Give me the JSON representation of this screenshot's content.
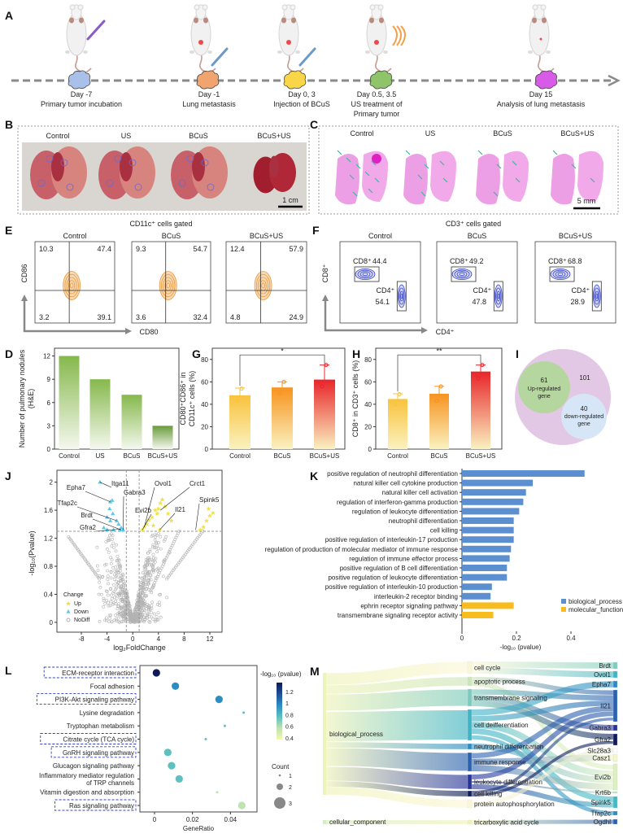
{
  "panel_labels": [
    "A",
    "B",
    "C",
    "D",
    "E",
    "F",
    "G",
    "H",
    "I",
    "J",
    "K",
    "L",
    "M"
  ],
  "panel_a": {
    "events": [
      {
        "day": "Day -7",
        "lines": [
          "Primary tumor incubation"
        ],
        "color": "#a9c1ea"
      },
      {
        "day": "Day -1",
        "lines": [
          "Lung metastasis"
        ],
        "color": "#f2a46f"
      },
      {
        "day": "Day 0, 3",
        "lines": [
          "Injection of BCuS"
        ],
        "color": "#f8d648"
      },
      {
        "day": "Day 0.5, 3.5",
        "lines": [
          "US treatment of",
          "Primary tumor"
        ],
        "color": "#8fc46a"
      },
      {
        "day": "Day 15",
        "lines": [
          "Analysis of lung metastasis"
        ],
        "color": "#d85ae8"
      }
    ]
  },
  "panel_b": {
    "groups": [
      "Control",
      "US",
      "BCuS",
      "BCuS+US"
    ],
    "scale_bar": "1 cm"
  },
  "panel_c": {
    "groups": [
      "Control",
      "US",
      "BCuS",
      "BCuS+US"
    ],
    "scale_bar": "5 mm"
  },
  "panel_e": {
    "title": "CD11c⁺ cells gated",
    "ylabel": "CD86",
    "xlabel": "CD80",
    "groups": [
      {
        "name": "Control",
        "q": [
          "10.3",
          "47.4",
          "3.2",
          "39.1"
        ]
      },
      {
        "name": "BCuS",
        "q": [
          "9.3",
          "54.7",
          "3.6",
          "32.4"
        ]
      },
      {
        "name": "BCuS+US",
        "q": [
          "12.4",
          "57.9",
          "4.8",
          "24.9"
        ]
      }
    ]
  },
  "panel_f": {
    "title": "CD3⁺ cells gated",
    "ylabel": "CD8⁺",
    "xlabel": "CD4⁺",
    "cd8_label": "CD8⁺",
    "cd4_label": "CD4⁺",
    "groups": [
      {
        "name": "Control",
        "cd8": "44.4",
        "cd4": "54.1"
      },
      {
        "name": "BCuS",
        "cd8": "49.2",
        "cd4": "47.8"
      },
      {
        "name": "BCuS+US",
        "cd8": "68.8",
        "cd4": "28.9"
      }
    ]
  },
  "panel_i": {
    "outer": "101",
    "up_count": "61",
    "up_label": [
      "Up-regulated",
      "gene"
    ],
    "down_count": "40",
    "down_label": [
      "down-regulated",
      "gene"
    ]
  },
  "chart_data": [
    {
      "panel": "D",
      "type": "bar",
      "categories": [
        "Control",
        "US",
        "BCuS",
        "BCuS+US"
      ],
      "values": [
        12,
        9,
        7,
        3
      ],
      "ylabel": [
        "Number of pulmonary nodules",
        "(H&E)"
      ],
      "xlabel": "",
      "ylim": [
        0,
        13
      ],
      "yticks": [
        "0",
        "3",
        "6",
        "9",
        "12"
      ],
      "color": "#86b84c"
    },
    {
      "panel": "G",
      "type": "bar",
      "categories": [
        "Control",
        "BCuS",
        "BCuS+US"
      ],
      "values": [
        48,
        55,
        62
      ],
      "errors": [
        6.5,
        5,
        13
      ],
      "points": [
        [
          54,
          43
        ],
        [
          60,
          50
        ],
        [
          75,
          56
        ]
      ],
      "ylabel": [
        "CD80⁺CD86⁺ in",
        "CD11c⁺ cells (%)"
      ],
      "ylim": [
        0,
        90
      ],
      "yticks": [
        "0",
        "20",
        "40",
        "60",
        "80"
      ],
      "significance": {
        "pair": [
          "Control",
          "BCuS+US"
        ],
        "label": "*"
      },
      "colors": [
        "#f9c23c",
        "#f7931e",
        "#e8242a"
      ]
    },
    {
      "panel": "H",
      "type": "bar",
      "categories": [
        "Control",
        "BCuS",
        "BCuS+US"
      ],
      "values": [
        44.7,
        49.4,
        69.2
      ],
      "errors": [
        4.7,
        6.6,
        5.8
      ],
      "points": [
        [
          49,
          40
        ],
        [
          56,
          43
        ],
        [
          75,
          63
        ]
      ],
      "ylabel": [
        "CD8⁺ in CD3⁺ cells (%)"
      ],
      "ylim": [
        0,
        90
      ],
      "yticks": [
        "0",
        "20",
        "40",
        "60",
        "80"
      ],
      "significance": {
        "pair": [
          "Control",
          "BCuS+US"
        ],
        "label": "**"
      },
      "colors": [
        "#f9c23c",
        "#f7931e",
        "#e8242a"
      ]
    },
    {
      "panel": "J",
      "type": "scatter",
      "xlabel": "log₂FoldChange",
      "ylabel": "-log₁₀(Pvalue)",
      "xlim": [
        -11.8,
        13.9
      ],
      "ylim": [
        -0.14,
        2.17
      ],
      "xticks": [
        "-8",
        "-4",
        "0",
        "4",
        "8",
        "12"
      ],
      "yticks": [
        "0",
        "0.4",
        "0.8",
        "1.2",
        "1.6",
        "2"
      ],
      "thresholds": {
        "log2fc": [
          -1,
          1
        ],
        "neglog10p": 1.3
      },
      "legend": {
        "title": "Change",
        "entries": [
          {
            "name": "Up",
            "color": "#f0e040"
          },
          {
            "name": "Down",
            "color": "#5ac8e8"
          },
          {
            "name": "NoDiff",
            "color": "#b0b0b0"
          }
        ]
      },
      "up": [
        [
          1.5,
          1.32
        ],
        [
          1.8,
          1.36
        ],
        [
          2.2,
          1.4
        ],
        [
          2.5,
          1.46
        ],
        [
          3,
          1.5
        ],
        [
          3.2,
          1.38
        ],
        [
          3.5,
          1.6
        ],
        [
          3.8,
          1.55
        ],
        [
          4,
          1.62
        ],
        [
          4.3,
          1.7
        ],
        [
          4.6,
          1.75
        ],
        [
          5,
          1.65
        ],
        [
          5.5,
          1.55
        ],
        [
          6,
          1.45
        ],
        [
          4.2,
          1.32
        ],
        [
          10.5,
          1.32
        ],
        [
          11,
          1.36
        ],
        [
          11.5,
          1.45
        ],
        [
          12,
          1.52
        ],
        [
          12.5,
          1.56
        ],
        [
          11.8,
          1.62
        ]
      ],
      "down": [
        [
          -5.1,
          2.0
        ],
        [
          -3.5,
          1.72
        ],
        [
          -3.2,
          1.74
        ],
        [
          -3.6,
          1.62
        ],
        [
          -3.1,
          1.55
        ],
        [
          -4,
          1.5
        ],
        [
          -3.5,
          1.45
        ],
        [
          -2.5,
          1.45
        ],
        [
          -2.2,
          1.4
        ],
        [
          -1.8,
          1.35
        ],
        [
          -1.5,
          1.32
        ],
        [
          -4.5,
          1.35
        ],
        [
          -4,
          1.32
        ],
        [
          -3,
          1.32
        ],
        [
          -2,
          1.32
        ]
      ],
      "labeled_genes": [
        {
          "gene": "Itga11",
          "x": -5.1,
          "y": 2.0
        },
        {
          "gene": "Epha7",
          "x": -3.5,
          "y": 1.72
        },
        {
          "gene": "Gabra3",
          "x": -1.5,
          "y": 1.32
        },
        {
          "gene": "Tfap2c",
          "x": -2.5,
          "y": 1.45
        },
        {
          "gene": "Brdt",
          "x": -1.8,
          "y": 1.32
        },
        {
          "gene": "Gfra2",
          "x": -1.9,
          "y": 1.33
        },
        {
          "gene": "Evi2b",
          "x": 1.5,
          "y": 1.32
        },
        {
          "gene": "Ovol1",
          "x": 1.8,
          "y": 1.36
        },
        {
          "gene": "Crct1",
          "x": 4.3,
          "y": 1.6
        },
        {
          "gene": "Il21",
          "x": 4.2,
          "y": 1.32
        },
        {
          "gene": "Spink5",
          "x": 9.8,
          "y": 1.32
        }
      ]
    },
    {
      "panel": "K",
      "type": "bar",
      "orientation": "horizontal",
      "xlabel": "-log₁₀ (pvalue)",
      "xlim": [
        0,
        0.5
      ],
      "xticks": [
        "0",
        "0.2",
        "0.4"
      ],
      "series": [
        {
          "name": "biological_process",
          "color": "#5b8fd0"
        },
        {
          "name": "molecular_function",
          "color": "#f7bd1f"
        }
      ],
      "categories": [
        "positive regulation of neutrophil differentiation",
        "natural killer cell cytokine production",
        "natural killer cell activation",
        "regulation of interferon-gamma production",
        "regulation of leukocyte differentiation",
        "neutrophil differentiation",
        "cell killing",
        "positive regulation of interleukin-17 production",
        "regulation of production of molecular mediator of immune response",
        "regulation of immune effector process",
        "positive regulation of B cell differentiation",
        "positive regulation of leukocyte differentiation",
        "positive regulation of interleukin-10 production",
        "interleukin-2 receptor binding",
        "ephrin receptor signaling pathway",
        "transmembrane signaling receptor activity"
      ],
      "values": [
        0.45,
        0.26,
        0.235,
        0.225,
        0.21,
        0.19,
        0.19,
        0.19,
        0.18,
        0.175,
        0.165,
        0.165,
        0.11,
        0.105,
        0.19,
        0.115
      ],
      "group": [
        0,
        0,
        0,
        0,
        0,
        0,
        0,
        0,
        0,
        0,
        0,
        0,
        0,
        0,
        1,
        1
      ]
    },
    {
      "panel": "L",
      "type": "scatter",
      "subtype": "bubble",
      "xlabel": "GeneRatio",
      "xlim": [
        -0.0077,
        0.054
      ],
      "xticks": [
        "0",
        "0.02",
        "0.04"
      ],
      "color_title": "-log₁₀ (pvalue)",
      "color_range": [
        0.4,
        1.35
      ],
      "color_ticks": [
        "1.2",
        "1",
        "0.8",
        "0.6",
        "0.4"
      ],
      "size_title": "Count",
      "size_ticks": [
        "1",
        "2",
        "3"
      ],
      "categories": [
        {
          "name": [
            "ECM-receptor interaction"
          ],
          "ratio": 0.001,
          "neglog10p": 1.33,
          "count": 2,
          "highlight": true
        },
        {
          "name": [
            "Focal adhesion"
          ],
          "ratio": 0.011,
          "neglog10p": 1.0,
          "count": 2,
          "highlight": false
        },
        {
          "name": [
            "PI3K-Akt signaling pathway"
          ],
          "ratio": 0.034,
          "neglog10p": 1.02,
          "count": 2,
          "highlight": true
        },
        {
          "name": [
            "Lysine degradation"
          ],
          "ratio": 0.047,
          "neglog10p": 0.8,
          "count": 1,
          "highlight": false
        },
        {
          "name": [
            "Tryptophan metabolism"
          ],
          "ratio": 0.037,
          "neglog10p": 0.8,
          "count": 1,
          "highlight": false
        },
        {
          "name": [
            "Citrate cycle (TCA cycle)"
          ],
          "ratio": 0.027,
          "neglog10p": 0.8,
          "count": 1,
          "highlight": true
        },
        {
          "name": [
            "GnRH signaling pathway"
          ],
          "ratio": 0.007,
          "neglog10p": 0.85,
          "count": 2,
          "highlight": true
        },
        {
          "name": [
            "Glucagon signaling pathway"
          ],
          "ratio": 0.009,
          "neglog10p": 0.85,
          "count": 2,
          "highlight": false
        },
        {
          "name": [
            "Inflammatory mediator regulation",
            "of TRP channels"
          ],
          "ratio": 0.013,
          "neglog10p": 0.85,
          "count": 2,
          "highlight": false
        },
        {
          "name": [
            "Vitamin digestion and absorption"
          ],
          "ratio": 0.033,
          "neglog10p": 0.6,
          "count": 1,
          "highlight": false
        },
        {
          "name": [
            "Ras signaling pathway"
          ],
          "ratio": 0.046,
          "neglog10p": 0.5,
          "count": 2,
          "highlight": true
        }
      ]
    },
    {
      "panel": "M",
      "type": "sankey",
      "sources": [
        {
          "name": "biological_process",
          "color": "#eef3b8"
        },
        {
          "name": "cellular_component",
          "color": "#d5ecc0"
        }
      ],
      "terms": [
        {
          "name": "cell cycle",
          "color": "#fbf7d6",
          "source": 0
        },
        {
          "name": "apoptotic process",
          "color": "#cde6b8",
          "source": 0
        },
        {
          "name": "transmembrane signaling",
          "color": "#7ccabb",
          "source": 0
        },
        {
          "name": "cell deifferentiation",
          "color": "#3fb4c4",
          "source": 0
        },
        {
          "name": "neutrophil differentiation",
          "color": "#2b8cc4",
          "source": 0
        },
        {
          "name": "immune response",
          "color": "#2b62b0",
          "source": 0
        },
        {
          "name": "leukocyte differentiation",
          "color": "#26349a",
          "source": 0
        },
        {
          "name": "cell killing",
          "color": "#0d1d5a",
          "source": 0
        },
        {
          "name": "protein autophosphorylation",
          "color": "#fbf7d6",
          "source": 0
        },
        {
          "name": "tricarboxylic acid cycle",
          "color": "#eef3b8",
          "source": 1
        }
      ],
      "genes": [
        {
          "name": "Brdt",
          "color": "#7ccdbd"
        },
        {
          "name": "Ovol1",
          "color": "#3fb4c4"
        },
        {
          "name": "Epha7",
          "color": "#2b8cc4"
        },
        {
          "name": "Il21",
          "color": "#2b62b0"
        },
        {
          "name": "Gabra3",
          "color": "#26349a"
        },
        {
          "name": "Gfra2",
          "color": "#0d1d5a"
        },
        {
          "name": "Slc28a3",
          "color": "#ffffff"
        },
        {
          "name": "Casz1",
          "color": "#f4f7c8"
        },
        {
          "name": "Evi2b",
          "color": "#dff0c0"
        },
        {
          "name": "Krt6b",
          "color": "#bce3b8"
        },
        {
          "name": "Spink5",
          "color": "#44b8c4"
        },
        {
          "name": "Tfap2c",
          "color": "#2b8cc4"
        },
        {
          "name": "Ogdhl",
          "color": "#2b62b0"
        }
      ],
      "links": [
        [
          "cell cycle",
          "Brdt"
        ],
        [
          "cell cycle",
          "Ovol1"
        ],
        [
          "apoptotic process",
          "Il21"
        ],
        [
          "apoptotic process",
          "Evi2b"
        ],
        [
          "transmembrane signaling",
          "Il21"
        ],
        [
          "transmembrane signaling",
          "Gabra3"
        ],
        [
          "transmembrane signaling",
          "Gfra2"
        ],
        [
          "cell deifferentiation",
          "Epha7"
        ],
        [
          "cell deifferentiation",
          "Il21"
        ],
        [
          "cell deifferentiation",
          "Evi2b"
        ],
        [
          "cell deifferentiation",
          "Spink5"
        ],
        [
          "cell deifferentiation",
          "Tfap2c"
        ],
        [
          "neutrophil differentiation",
          "Evi2b"
        ],
        [
          "immune response",
          "Il21"
        ],
        [
          "immune response",
          "Casz1"
        ],
        [
          "immune response",
          "Evi2b"
        ],
        [
          "leukocyte differentiation",
          "Il21"
        ],
        [
          "leukocyte differentiation",
          "Krt6b"
        ],
        [
          "leukocyte differentiation",
          "Spink5"
        ],
        [
          "cell killing",
          "Il21"
        ],
        [
          "cell killing",
          "Gfra2"
        ],
        [
          "protein autophosphorylation",
          "Slc28a3"
        ],
        [
          "tricarboxylic acid cycle",
          "Ogdhl"
        ]
      ]
    }
  ]
}
